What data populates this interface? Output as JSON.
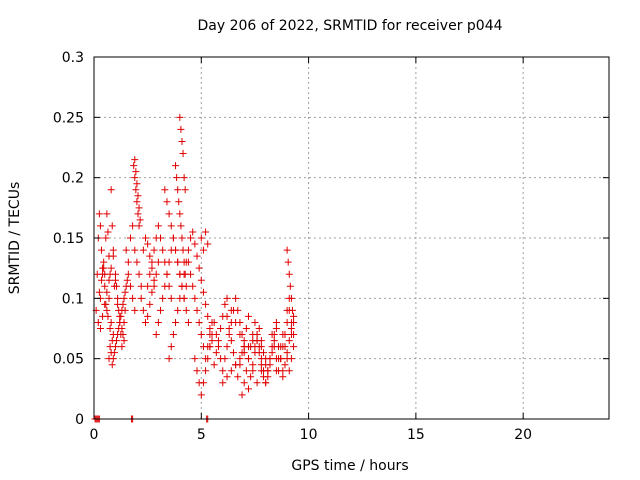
{
  "chart_data": {
    "type": "scatter",
    "title": "Day 206 of 2022, SRMTID for receiver p044",
    "xlabel": "GPS time / hours",
    "ylabel": "SRMTID / TECUs",
    "xlim": [
      0,
      24
    ],
    "ylim": [
      0,
      0.3
    ],
    "x_ticks": [
      0,
      5,
      10,
      15,
      20
    ],
    "x_tick_labels": [
      "0",
      "5",
      "10",
      "15",
      "20"
    ],
    "y_ticks": [
      0,
      0.05,
      0.1,
      0.15,
      0.2,
      0.25,
      0.3
    ],
    "y_tick_labels": [
      "0",
      "0.05",
      "0.1",
      "0.15",
      "0.2",
      "0.25",
      "0.3"
    ],
    "grid": true,
    "marker": "plus",
    "color": "#e00000",
    "series": [
      {
        "name": "SRMTID",
        "x": [
          0.05,
          0.1,
          0.15,
          0.2,
          0.25,
          1.75,
          1.8,
          5.25,
          5.3,
          0.1,
          0.15,
          0.2,
          0.25,
          0.3,
          0.35,
          0.4,
          0.45,
          0.5,
          0.55,
          0.6,
          0.65,
          0.7,
          0.75,
          0.8,
          0.85,
          0.9,
          0.95,
          0.2,
          0.3,
          0.4,
          0.5,
          0.6,
          0.7,
          0.8,
          0.9,
          1.0,
          1.1,
          1.2,
          1.3,
          1.4,
          1.5,
          1.6,
          1.7,
          1.8,
          1.9,
          0.25,
          0.35,
          0.45,
          0.55,
          0.65,
          0.75,
          0.85,
          0.95,
          1.05,
          1.15,
          1.25,
          1.35,
          1.45,
          1.55,
          0.3,
          0.4,
          0.5,
          0.6,
          0.7,
          0.8,
          0.9,
          1.0,
          1.1,
          1.2,
          1.3,
          1.4,
          0.7,
          0.75,
          0.8,
          0.85,
          0.9,
          1.0,
          1.05,
          1.1,
          1.15,
          1.2,
          1.25,
          1.3,
          1.35,
          1.4,
          1.45,
          1.5,
          1.6,
          1.7,
          1.8,
          1.9,
          2.0,
          2.1,
          2.2,
          1.85,
          1.9,
          1.95,
          2.0,
          2.05,
          2.1,
          1.9,
          1.95,
          2.0,
          2.05,
          2.1,
          2.15,
          2.2,
          2.3,
          2.4,
          2.5,
          2.6,
          2.7,
          2.8,
          2.9,
          3.0,
          2.3,
          2.4,
          2.5,
          2.6,
          2.7,
          2.8,
          2.5,
          2.6,
          2.7,
          2.8,
          2.9,
          3.0,
          3.1,
          3.2,
          3.3,
          3.4,
          3.5,
          3.6,
          2.9,
          3.0,
          3.1,
          3.2,
          3.3,
          3.4,
          3.5,
          3.6,
          3.7,
          3.8,
          3.9,
          4.0,
          4.1,
          4.2,
          3.3,
          3.4,
          3.5,
          3.6,
          3.7,
          3.8,
          3.9,
          4.0,
          4.1,
          4.2,
          4.3,
          4.4,
          3.5,
          3.6,
          3.7,
          3.8,
          3.9,
          4.0,
          4.1,
          4.2,
          4.3,
          4.4,
          4.5,
          3.8,
          3.85,
          3.9,
          3.95,
          4.0,
          4.05,
          4.1,
          4.15,
          4.2,
          4.25,
          4.3,
          4.0,
          4.05,
          4.1,
          4.15,
          4.2,
          4.25,
          4.4,
          4.5,
          4.6,
          4.7,
          4.8,
          4.9,
          5.0,
          5.1,
          5.2,
          5.3,
          5.4,
          5.5,
          4.6,
          4.7,
          4.8,
          4.9,
          5.0,
          5.1,
          5.2,
          5.3,
          5.4,
          5.5,
          4.7,
          4.8,
          4.9,
          5.0,
          5.1,
          5.2,
          5.3,
          5.4,
          5.0,
          5.1,
          5.2,
          5.3,
          5.4,
          5.5,
          5.6,
          5.7,
          5.8,
          5.9,
          6.0,
          6.1,
          6.2,
          6.3,
          6.4,
          6.5,
          6.6,
          6.7,
          6.8,
          6.9,
          7.0,
          5.6,
          5.7,
          5.8,
          5.9,
          6.0,
          6.1,
          6.2,
          6.3,
          6.4,
          6.5,
          6.6,
          6.7,
          6.8,
          6.9,
          7.0,
          7.1,
          7.2,
          6.0,
          6.2,
          6.4,
          6.6,
          6.8,
          7.0,
          7.2,
          7.4,
          7.6,
          7.8,
          8.0,
          6.2,
          6.4,
          6.6,
          6.8,
          7.0,
          7.2,
          7.4,
          7.6,
          7.8,
          6.9,
          7.0,
          7.1,
          7.2,
          7.3,
          7.4,
          7.5,
          7.6,
          7.7,
          7.8,
          7.9,
          8.0,
          8.1,
          8.2,
          8.3,
          8.4,
          8.5,
          7.2,
          7.3,
          7.4,
          7.5,
          7.6,
          7.7,
          7.8,
          7.9,
          8.0,
          8.1,
          8.2,
          8.3,
          8.4,
          8.5,
          8.6,
          8.7,
          8.8,
          7.5,
          7.6,
          7.7,
          7.8,
          7.9,
          8.0,
          8.1,
          8.2,
          8.3,
          8.4,
          8.5,
          8.6,
          8.7,
          8.8,
          8.9,
          9.0,
          9.1,
          9.2,
          9.3,
          8.5,
          8.6,
          8.7,
          8.8,
          8.9,
          9.0,
          9.1,
          9.2,
          9.3,
          8.8,
          8.9,
          9.0,
          9.1,
          9.2,
          9.3,
          9.0,
          9.05,
          9.1,
          9.15,
          9.2,
          9.25,
          9.3,
          9.0,
          9.1,
          9.2
        ],
        "y": [
          0.0,
          0.0,
          0.0,
          0.0,
          0.0,
          0.0,
          0.0,
          0.0,
          0.0,
          0.09,
          0.12,
          0.15,
          0.17,
          0.16,
          0.14,
          0.125,
          0.13,
          0.12,
          0.15,
          0.17,
          0.155,
          0.135,
          0.12,
          0.19,
          0.16,
          0.14,
          0.11,
          0.08,
          0.1,
          0.12,
          0.11,
          0.09,
          0.1,
          0.08,
          0.07,
          0.06,
          0.07,
          0.08,
          0.09,
          0.1,
          0.11,
          0.12,
          0.11,
          0.1,
          0.09,
          0.105,
          0.115,
          0.125,
          0.095,
          0.085,
          0.075,
          0.065,
          0.055,
          0.065,
          0.075,
          0.085,
          0.095,
          0.105,
          0.115,
          0.075,
          0.085,
          0.095,
          0.105,
          0.115,
          0.125,
          0.135,
          0.115,
          0.095,
          0.085,
          0.075,
          0.065,
          0.05,
          0.06,
          0.055,
          0.045,
          0.05,
          0.12,
          0.11,
          0.1,
          0.09,
          0.08,
          0.07,
          0.06,
          0.07,
          0.08,
          0.09,
          0.14,
          0.13,
          0.15,
          0.16,
          0.14,
          0.13,
          0.12,
          0.11,
          0.21,
          0.2,
          0.19,
          0.18,
          0.17,
          0.16,
          0.215,
          0.205,
          0.195,
          0.185,
          0.175,
          0.165,
          0.1,
          0.09,
          0.08,
          0.085,
          0.095,
          0.105,
          0.11,
          0.12,
          0.13,
          0.14,
          0.15,
          0.145,
          0.135,
          0.125,
          0.115,
          0.11,
          0.12,
          0.13,
          0.14,
          0.15,
          0.16,
          0.15,
          0.14,
          0.13,
          0.12,
          0.11,
          0.1,
          0.07,
          0.08,
          0.09,
          0.1,
          0.11,
          0.12,
          0.13,
          0.14,
          0.15,
          0.14,
          0.13,
          0.12,
          0.11,
          0.1,
          0.19,
          0.18,
          0.17,
          0.16,
          0.15,
          0.14,
          0.13,
          0.12,
          0.11,
          0.1,
          0.09,
          0.08,
          0.05,
          0.06,
          0.07,
          0.08,
          0.09,
          0.1,
          0.11,
          0.12,
          0.13,
          0.14,
          0.15,
          0.21,
          0.2,
          0.19,
          0.18,
          0.17,
          0.16,
          0.15,
          0.14,
          0.13,
          0.12,
          0.11,
          0.25,
          0.24,
          0.23,
          0.22,
          0.2,
          0.19,
          0.13,
          0.12,
          0.11,
          0.1,
          0.09,
          0.08,
          0.07,
          0.06,
          0.05,
          0.06,
          0.07,
          0.08,
          0.155,
          0.145,
          0.135,
          0.125,
          0.115,
          0.105,
          0.095,
          0.085,
          0.075,
          0.065,
          0.05,
          0.04,
          0.03,
          0.02,
          0.03,
          0.04,
          0.05,
          0.06,
          0.15,
          0.14,
          0.155,
          0.145,
          0.06,
          0.07,
          0.08,
          0.07,
          0.06,
          0.05,
          0.04,
          0.05,
          0.06,
          0.07,
          0.08,
          0.09,
          0.1,
          0.09,
          0.08,
          0.07,
          0.06,
          0.045,
          0.055,
          0.065,
          0.075,
          0.085,
          0.095,
          0.085,
          0.075,
          0.065,
          0.055,
          0.045,
          0.035,
          0.045,
          0.055,
          0.065,
          0.075,
          0.085,
          0.03,
          0.035,
          0.04,
          0.045,
          0.05,
          0.055,
          0.06,
          0.065,
          0.07,
          0.06,
          0.05,
          0.1,
          0.09,
          0.08,
          0.07,
          0.06,
          0.05,
          0.04,
          0.03,
          0.04,
          0.02,
          0.03,
          0.04,
          0.05,
          0.06,
          0.07,
          0.08,
          0.07,
          0.06,
          0.05,
          0.04,
          0.03,
          0.04,
          0.05,
          0.06,
          0.07,
          0.08,
          0.025,
          0.035,
          0.045,
          0.055,
          0.065,
          0.075,
          0.065,
          0.055,
          0.045,
          0.035,
          0.045,
          0.055,
          0.065,
          0.075,
          0.06,
          0.05,
          0.04,
          0.06,
          0.065,
          0.055,
          0.045,
          0.035,
          0.03,
          0.04,
          0.05,
          0.07,
          0.06,
          0.05,
          0.04,
          0.05,
          0.06,
          0.07,
          0.08,
          0.09,
          0.08,
          0.07,
          0.04,
          0.05,
          0.06,
          0.07,
          0.06,
          0.05,
          0.04,
          0.05,
          0.06,
          0.035,
          0.045,
          0.055,
          0.065,
          0.075,
          0.085,
          0.14,
          0.13,
          0.12,
          0.11,
          0.1,
          0.09,
          0.08,
          0.09,
          0.1,
          0.07
        ]
      }
    ]
  }
}
